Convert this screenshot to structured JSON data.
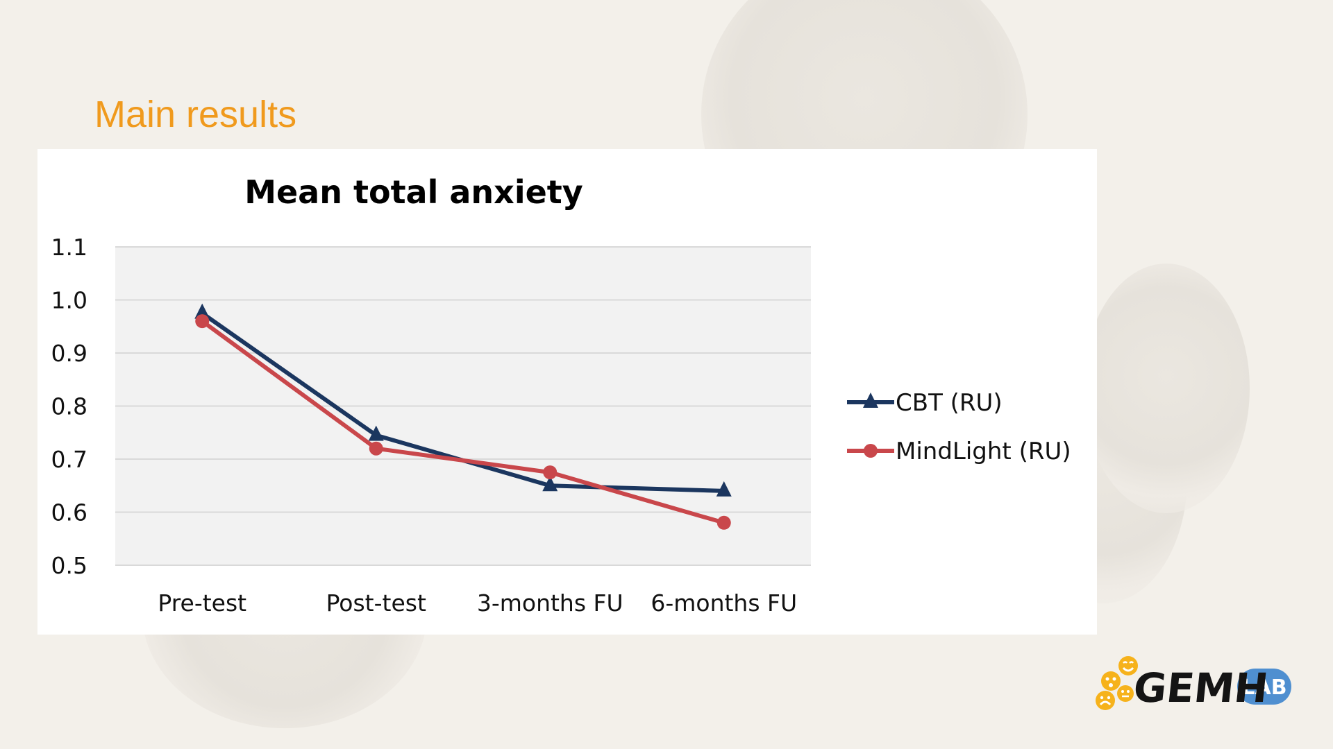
{
  "slide": {
    "title": "Main results"
  },
  "colors": {
    "title": "#f09a1d",
    "cbt": "#1b365f",
    "mindlight": "#c9474b",
    "plot_bg": "#f2f2f2",
    "grid": "#d9d9d9"
  },
  "chart_data": {
    "type": "line",
    "title": "Mean total anxiety",
    "categories": [
      "Pre-test",
      "Post-test",
      "3-months FU",
      "6-months FU"
    ],
    "ylim": [
      0.5,
      1.1
    ],
    "yticks": [
      "1.1",
      "1.0",
      "0.9",
      "0.8",
      "0.7",
      "0.6",
      "0.5"
    ],
    "grid": true,
    "legend_position": "right",
    "series": [
      {
        "name": "CBT (RU)",
        "marker": "triangle",
        "color": "#1b365f",
        "values": [
          0.975,
          0.745,
          0.65,
          0.64
        ]
      },
      {
        "name": "MindLight (RU)",
        "marker": "circle",
        "color": "#c9474b",
        "values": [
          0.96,
          0.72,
          0.675,
          0.58
        ]
      }
    ]
  },
  "logo": {
    "name": "GEMH",
    "badge": "LAB",
    "icons": [
      "smiley-face-icon",
      "worried-face-icon",
      "sad-face-icon",
      "neutral-face-icon"
    ]
  }
}
